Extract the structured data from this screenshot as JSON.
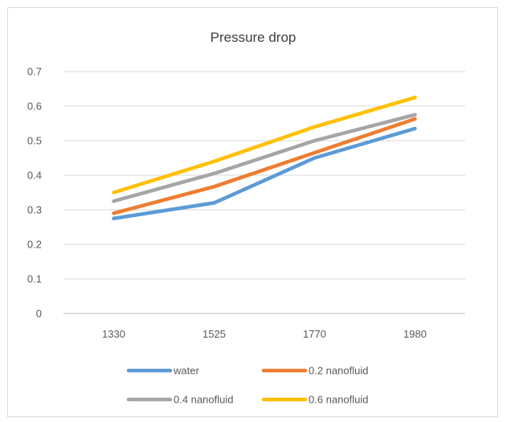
{
  "chart_data": {
    "type": "line",
    "title": "Pressure drop",
    "xlabel": "",
    "ylabel": "",
    "categories": [
      "1330",
      "1525",
      "1770",
      "1980"
    ],
    "ylim": [
      0,
      0.7
    ],
    "yticks": [
      "0",
      "0.1",
      "0.2",
      "0.3",
      "0.4",
      "0.5",
      "0.6",
      "0.7"
    ],
    "grid": true,
    "legend_position": "bottom",
    "series": [
      {
        "name": "water",
        "color": "#5b9bd5",
        "values": [
          0.275,
          0.32,
          0.45,
          0.535
        ]
      },
      {
        "name": "0.2 nanofluid",
        "color": "#ed7d31",
        "values": [
          0.29,
          0.367,
          0.465,
          0.563
        ]
      },
      {
        "name": "0.4  nanofluid",
        "color": "#a5a5a5",
        "values": [
          0.325,
          0.405,
          0.5,
          0.575
        ]
      },
      {
        "name": "0.6  nanofluid",
        "color": "#ffc000",
        "values": [
          0.35,
          0.44,
          0.54,
          0.625
        ]
      }
    ]
  }
}
